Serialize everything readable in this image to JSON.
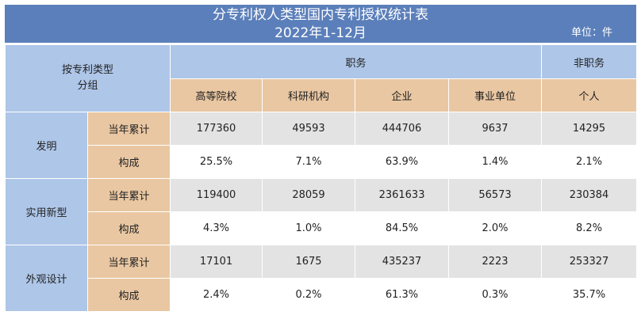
{
  "title": {
    "line1": "分专利权人类型国内专利授权统计表",
    "line2": "2022年1-12月",
    "unit": "单位：件"
  },
  "header": {
    "group_line1": "按专利类型",
    "group_line2": "分组",
    "service": "职务",
    "non_service": "非职务",
    "columns": [
      "高等院校",
      "科研机构",
      "企业",
      "事业单位",
      "个人"
    ]
  },
  "rows": [
    {
      "type": "发明",
      "cumulative_label": "当年累计",
      "share_label": "构成",
      "cumulative": [
        "177360",
        "49593",
        "444706",
        "9637",
        "14295"
      ],
      "share": [
        "25.5%",
        "7.1%",
        "63.9%",
        "1.4%",
        "2.1%"
      ]
    },
    {
      "type": "实用新型",
      "cumulative_label": "当年累计",
      "share_label": "构成",
      "cumulative": [
        "119400",
        "28059",
        "2361633",
        "56573",
        "230384"
      ],
      "share": [
        "4.3%",
        "1.0%",
        "84.5%",
        "2.0%",
        "8.2%"
      ]
    },
    {
      "type": "外观设计",
      "cumulative_label": "当年累计",
      "share_label": "构成",
      "cumulative": [
        "17101",
        "1675",
        "435237",
        "2223",
        "253327"
      ],
      "share": [
        "2.4%",
        "0.2%",
        "61.3%",
        "0.3%",
        "35.7%"
      ]
    }
  ]
}
